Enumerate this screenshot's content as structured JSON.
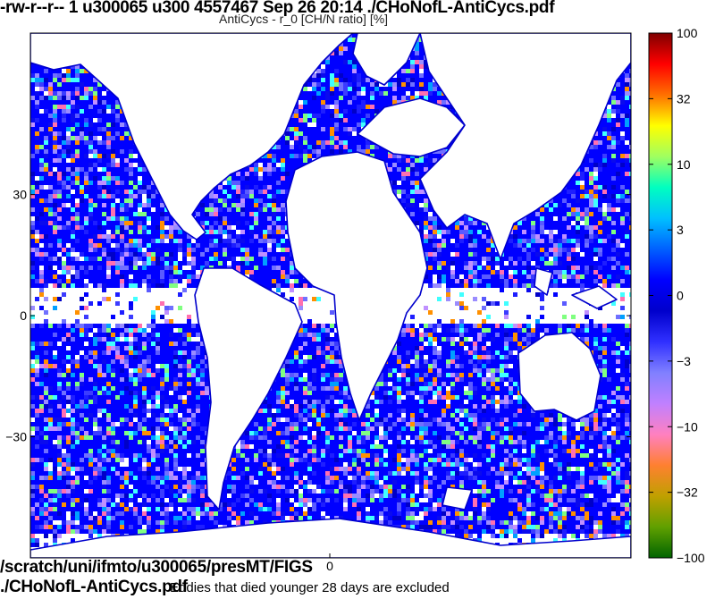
{
  "header": {
    "file_listing": "-rw-r--r-- 1 u300065 u300 4557467 Sep 26 20:14 ./CHoNofL-AntiCycs.pdf"
  },
  "footer": {
    "path_line1": "/scratch/uni/ifmto/u300065/presMT/FIGS",
    "path_line2": "./CHoNofL-AntiCycs.pdf",
    "note": "Eddies that died younger 28 days are excluded"
  },
  "chart_data": {
    "type": "heatmap",
    "title": "AntiCycs - r_0 [CH/N ratio] [%]",
    "x_tick_labels": [
      "0"
    ],
    "y_ticks": [
      30,
      0,
      -30
    ],
    "y_tick_labels": [
      "30",
      "0",
      "−30"
    ],
    "ylim": [
      -60,
      70
    ],
    "colorbar": {
      "ticks": [
        100,
        32,
        10,
        3,
        0,
        -3,
        -10,
        -32,
        -100
      ],
      "tick_labels": [
        "100",
        "32",
        "10",
        "3",
        "0",
        "−3",
        "−10",
        "−32",
        "−100"
      ],
      "scale": "symmetric-log",
      "colors": [
        "#00007f",
        "#0000ff",
        "#0080ff",
        "#00ffff",
        "#80ff80",
        "#ffff00",
        "#ff8000",
        "#ff0000",
        "#7f0000"
      ],
      "lower_colors": [
        "#006400",
        "#7ac000",
        "#ff8000",
        "#ff6ab0",
        "#b090ff",
        "#5050ff",
        "#0000ff"
      ]
    },
    "map_outline_color": "#0000cc",
    "land_color": "#ffffff",
    "dominant_value_range": [
      -3,
      0
    ]
  }
}
